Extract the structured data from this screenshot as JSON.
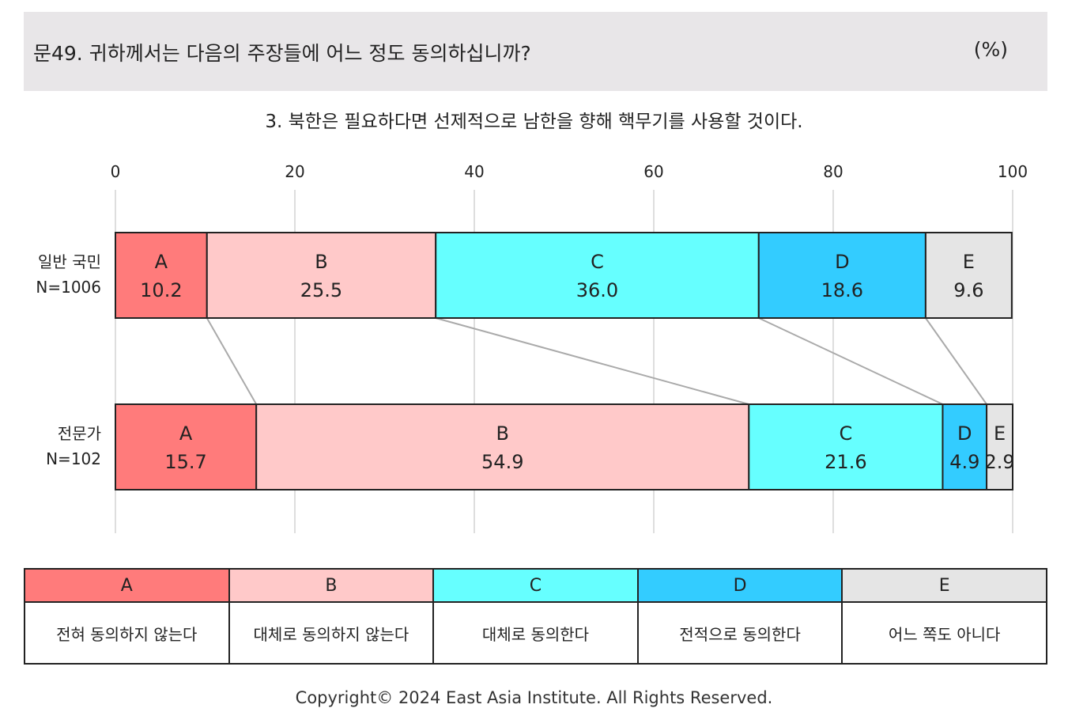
{
  "header": {
    "question": "문49. 귀하께서는 다음의 주장들에 어느 정도 동의하십니까?",
    "unit": "(%)"
  },
  "subtitle": "3. 북한은 필요하다면 선제적으로 남한을 향해 핵무기를 사용할 것이다.",
  "colors": {
    "A": "#ff7b7b",
    "B": "#ffc9c9",
    "C": "#66ffff",
    "D": "#33ccff",
    "E": "#e5e5e5"
  },
  "chart_data": {
    "type": "bar",
    "orientation": "horizontal",
    "stacked": "percent",
    "xlim": [
      0,
      100
    ],
    "xticks": [
      0,
      20,
      40,
      60,
      80,
      100
    ],
    "grid": true,
    "categories": [
      {
        "label": "일반 국민",
        "n": "N=1006"
      },
      {
        "label": "전문가",
        "n": "N=102"
      }
    ],
    "series": [
      {
        "name": "A",
        "values": [
          10.2,
          15.7
        ]
      },
      {
        "name": "B",
        "values": [
          25.5,
          54.9
        ]
      },
      {
        "name": "C",
        "values": [
          36.0,
          21.6
        ]
      },
      {
        "name": "D",
        "values": [
          18.6,
          4.9
        ]
      },
      {
        "name": "E",
        "values": [
          9.6,
          2.9
        ]
      }
    ]
  },
  "legend": [
    {
      "key": "A",
      "label": "전혀 동의하지 않는다"
    },
    {
      "key": "B",
      "label": "대체로 동의하지 않는다"
    },
    {
      "key": "C",
      "label": "대체로 동의한다"
    },
    {
      "key": "D",
      "label": "전적으로 동의한다"
    },
    {
      "key": "E",
      "label": "어느 쪽도 아니다"
    }
  ],
  "footer": "Copyright© 2024 East Asia Institute. All Rights Reserved."
}
